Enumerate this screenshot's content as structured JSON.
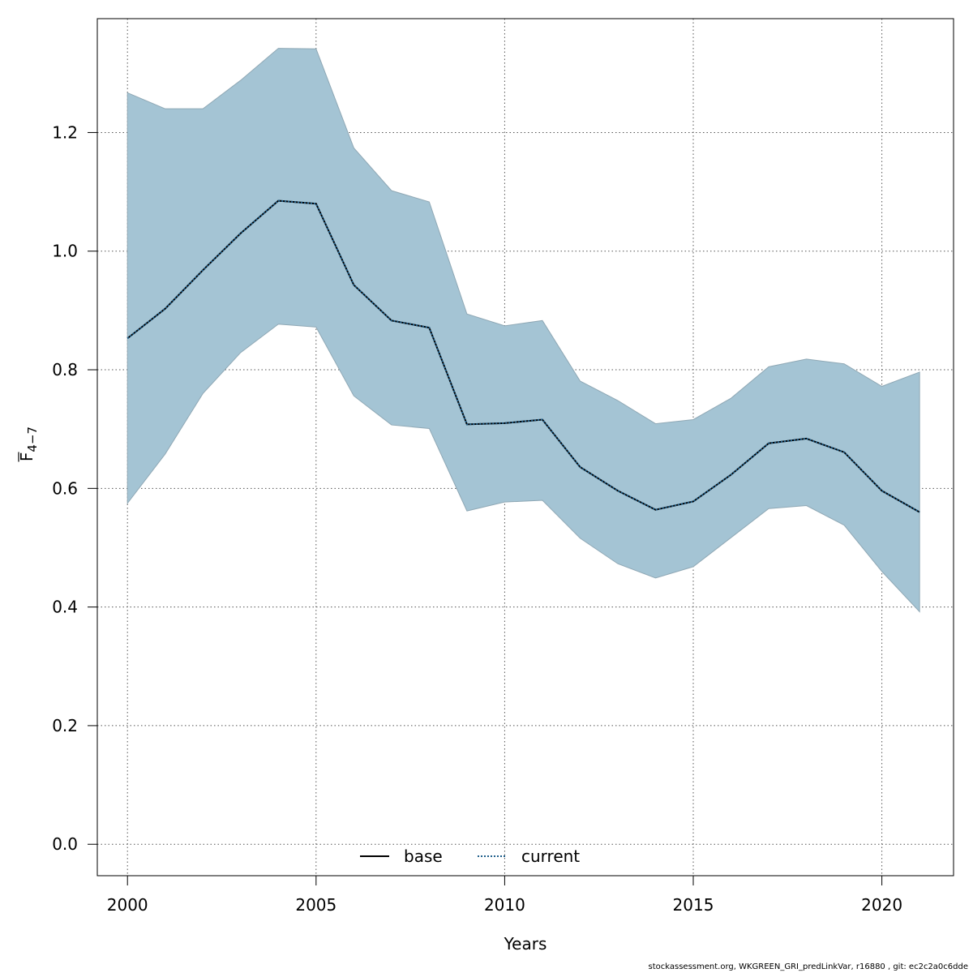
{
  "chart_data": {
    "type": "line",
    "xlabel": "Years",
    "ylabel_main": "F",
    "ylabel_sub": "4−7",
    "x": [
      2000,
      2001,
      2002,
      2003,
      2004,
      2005,
      2006,
      2007,
      2008,
      2009,
      2010,
      2011,
      2012,
      2013,
      2014,
      2015,
      2016,
      2017,
      2018,
      2019,
      2020,
      2021
    ],
    "xlim": [
      1999.2,
      2021.9
    ],
    "ylim": [
      -0.053,
      1.392
    ],
    "xticks": [
      2000,
      2005,
      2010,
      2015,
      2020
    ],
    "yticks": [
      0.0,
      0.2,
      0.4,
      0.6,
      0.8,
      1.0,
      1.2
    ],
    "ytick_labels": [
      "0.0",
      "0.2",
      "0.4",
      "0.6",
      "0.8",
      "1.0",
      "1.2"
    ],
    "grid": true,
    "band": {
      "upper": [
        1.267,
        1.24,
        1.24,
        1.288,
        1.342,
        1.341,
        1.174,
        1.102,
        1.083,
        0.894,
        0.874,
        0.883,
        0.781,
        0.748,
        0.709,
        0.716,
        0.752,
        0.805,
        0.818,
        0.81,
        0.772,
        0.796
      ],
      "lower": [
        0.575,
        0.658,
        0.76,
        0.829,
        0.877,
        0.872,
        0.756,
        0.707,
        0.701,
        0.562,
        0.577,
        0.58,
        0.516,
        0.473,
        0.449,
        0.468,
        0.517,
        0.566,
        0.571,
        0.538,
        0.46,
        0.392
      ],
      "fill": "#a4c4d4",
      "stroke": "#8fa8b5"
    },
    "series": [
      {
        "name": "base",
        "style": "solid",
        "color": "#000000",
        "values": [
          0.853,
          0.903,
          0.968,
          1.03,
          1.085,
          1.08,
          0.943,
          0.883,
          0.871,
          0.708,
          0.71,
          0.716,
          0.636,
          0.596,
          0.564,
          0.578,
          0.623,
          0.676,
          0.684,
          0.661,
          0.596,
          0.56
        ]
      },
      {
        "name": "current",
        "style": "dotted",
        "color": "#1f5f8b",
        "values": [
          0.853,
          0.903,
          0.968,
          1.03,
          1.085,
          1.08,
          0.943,
          0.883,
          0.871,
          0.708,
          0.71,
          0.716,
          0.636,
          0.596,
          0.564,
          0.578,
          0.623,
          0.676,
          0.684,
          0.661,
          0.596,
          0.56
        ]
      }
    ],
    "legend": {
      "position": "bottom-center",
      "labels": [
        "base",
        "current"
      ]
    }
  },
  "footer": "stockassessment.org, WKGREEN_GRI_predLinkVar, r16880 , git: ec2c2a0c6dde"
}
